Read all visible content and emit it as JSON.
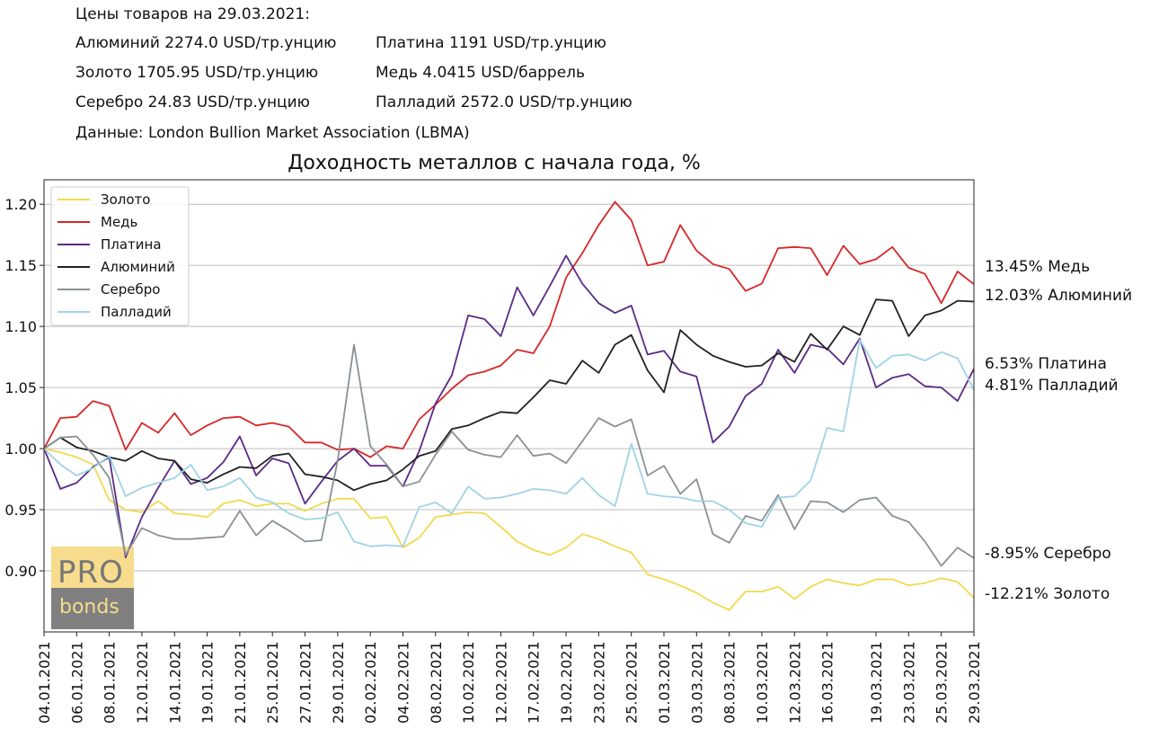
{
  "header": {
    "date_line": "Цены товаров на 29.03.2021:",
    "prices": [
      [
        "Алюминий 2274.0 USD/тр.унцию",
        "Платина 1191 USD/тр.унцию"
      ],
      [
        "Золото 1705.95 USD/тр.унцию",
        "Медь 4.0415 USD/баррель"
      ],
      [
        "Серебро 24.83 USD/тр.унцию",
        "Палладий 2572.0 USD/тр.унцию"
      ]
    ],
    "source": "Данные: London Bullion Market Association (LBMA)"
  },
  "watermark": {
    "top": "PRO",
    "bottom": "bonds"
  },
  "chart_data": {
    "type": "line",
    "title": "Доходность металлов с начала года, %",
    "xlabel": "",
    "ylabel": "",
    "ylim": [
      0.85,
      1.22
    ],
    "yticks": [
      0.9,
      0.95,
      1.0,
      1.05,
      1.1,
      1.15,
      1.2
    ],
    "grid": "horizontal",
    "legend_position": "top-left",
    "x": [
      "04.01.2021",
      "05.01.2021",
      "06.01.2021",
      "07.01.2021",
      "08.01.2021",
      "11.01.2021",
      "12.01.2021",
      "13.01.2021",
      "14.01.2021",
      "15.01.2021",
      "19.01.2021",
      "20.01.2021",
      "21.01.2021",
      "22.01.2021",
      "25.01.2021",
      "26.01.2021",
      "27.01.2021",
      "28.01.2021",
      "29.01.2021",
      "01.02.2021",
      "02.02.2021",
      "03.02.2021",
      "04.02.2021",
      "05.02.2021",
      "08.02.2021",
      "09.02.2021",
      "10.02.2021",
      "11.02.2021",
      "12.02.2021",
      "16.02.2021",
      "17.02.2021",
      "18.02.2021",
      "19.02.2021",
      "22.02.2021",
      "23.02.2021",
      "24.02.2021",
      "25.02.2021",
      "26.02.2021",
      "01.03.2021",
      "02.03.2021",
      "03.03.2021",
      "04.03.2021",
      "08.03.2021",
      "09.03.2021",
      "10.03.2021",
      "11.03.2021",
      "12.03.2021",
      "15.03.2021",
      "16.03.2021",
      "17.03.2021",
      "18.03.2021",
      "19.03.2021",
      "22.03.2021",
      "23.03.2021",
      "24.03.2021",
      "25.03.2021",
      "26.03.2021",
      "29.03.2021"
    ],
    "x_tick_labels": [
      "04.01.2021",
      "06.01.2021",
      "08.01.2021",
      "12.01.2021",
      "14.01.2021",
      "19.01.2021",
      "21.01.2021",
      "25.01.2021",
      "27.01.2021",
      "29.01.2021",
      "02.02.2021",
      "04.02.2021",
      "08.02.2021",
      "10.02.2021",
      "12.02.2021",
      "17.02.2021",
      "19.02.2021",
      "23.02.2021",
      "25.02.2021",
      "01.03.2021",
      "03.03.2021",
      "08.03.2021",
      "10.03.2021",
      "12.03.2021",
      "16.03.2021",
      "19.03.2021",
      "23.03.2021",
      "25.03.2021",
      "29.03.2021"
    ],
    "series": [
      {
        "name": "Золото",
        "color": "#f2d94e",
        "end_label": "-12.21% Золото",
        "values": [
          1.0,
          0.997,
          0.993,
          0.987,
          0.958,
          0.95,
          0.948,
          0.957,
          0.947,
          0.946,
          0.944,
          0.955,
          0.958,
          0.953,
          0.955,
          0.955,
          0.949,
          0.955,
          0.959,
          0.959,
          0.943,
          0.944,
          0.919,
          0.927,
          0.944,
          0.946,
          0.948,
          0.947,
          0.936,
          0.924,
          0.917,
          0.913,
          0.919,
          0.93,
          0.926,
          0.92,
          0.915,
          0.897,
          0.893,
          0.888,
          0.882,
          0.874,
          0.868,
          0.883,
          0.883,
          0.887,
          0.877,
          0.887,
          0.893,
          0.89,
          0.888,
          0.893,
          0.893,
          0.888,
          0.89,
          0.894,
          0.891,
          0.8779
        ]
      },
      {
        "name": "Медь",
        "color": "#d62728",
        "end_label": "13.45% Медь",
        "values": [
          1.0,
          1.025,
          1.026,
          1.039,
          1.035,
          0.999,
          1.021,
          1.013,
          1.029,
          1.011,
          1.019,
          1.025,
          1.026,
          1.019,
          1.021,
          1.018,
          1.005,
          1.005,
          0.999,
          1.0,
          0.993,
          1.002,
          1.0,
          1.024,
          1.036,
          1.049,
          1.06,
          1.063,
          1.068,
          1.081,
          1.078,
          1.1,
          1.14,
          1.16,
          1.183,
          1.202,
          1.187,
          1.15,
          1.153,
          1.183,
          1.162,
          1.151,
          1.147,
          1.129,
          1.135,
          1.164,
          1.165,
          1.164,
          1.142,
          1.166,
          1.151,
          1.155,
          1.165,
          1.148,
          1.143,
          1.119,
          1.145,
          1.1345
        ]
      },
      {
        "name": "Платина",
        "color": "#5b2a86",
        "end_label": "6.53% Платина",
        "values": [
          1.0,
          0.967,
          0.972,
          0.985,
          0.993,
          0.911,
          0.944,
          0.968,
          0.99,
          0.971,
          0.976,
          0.989,
          1.01,
          0.978,
          0.992,
          0.988,
          0.955,
          0.973,
          0.99,
          1.0,
          0.986,
          0.986,
          0.969,
          0.998,
          1.037,
          1.06,
          1.109,
          1.106,
          1.092,
          1.132,
          1.109,
          1.133,
          1.158,
          1.135,
          1.119,
          1.111,
          1.117,
          1.077,
          1.08,
          1.063,
          1.059,
          1.005,
          1.018,
          1.043,
          1.053,
          1.081,
          1.062,
          1.085,
          1.082,
          1.069,
          1.09,
          1.05,
          1.058,
          1.061,
          1.051,
          1.05,
          1.039,
          1.0653
        ]
      },
      {
        "name": "Алюминий",
        "color": "#222222",
        "end_label": "12.03% Алюминий",
        "values": [
          1.0,
          1.009,
          1.001,
          0.998,
          0.993,
          0.99,
          0.998,
          0.992,
          0.99,
          0.975,
          0.972,
          0.979,
          0.985,
          0.984,
          0.994,
          0.996,
          0.979,
          0.977,
          0.974,
          0.966,
          0.971,
          0.974,
          0.983,
          0.994,
          0.998,
          1.016,
          1.019,
          1.025,
          1.03,
          1.029,
          1.042,
          1.056,
          1.053,
          1.072,
          1.062,
          1.085,
          1.093,
          1.064,
          1.046,
          1.097,
          1.085,
          1.076,
          1.071,
          1.067,
          1.068,
          1.078,
          1.071,
          1.094,
          1.081,
          1.1,
          1.093,
          1.122,
          1.121,
          1.092,
          1.109,
          1.113,
          1.121,
          1.1203
        ]
      },
      {
        "name": "Серебро",
        "color": "#8a9196",
        "end_label": "-8.95% Серебро",
        "values": [
          1.0,
          1.009,
          1.01,
          0.995,
          0.976,
          0.913,
          0.935,
          0.929,
          0.926,
          0.926,
          0.927,
          0.928,
          0.949,
          0.929,
          0.941,
          0.933,
          0.924,
          0.925,
          0.99,
          1.085,
          1.002,
          0.987,
          0.969,
          0.973,
          0.995,
          1.014,
          0.999,
          0.995,
          0.993,
          1.011,
          0.994,
          0.996,
          0.988,
          1.006,
          1.025,
          1.018,
          1.024,
          0.978,
          0.986,
          0.963,
          0.975,
          0.93,
          0.923,
          0.945,
          0.941,
          0.962,
          0.934,
          0.957,
          0.956,
          0.948,
          0.958,
          0.96,
          0.945,
          0.94,
          0.924,
          0.904,
          0.919,
          0.9105
        ]
      },
      {
        "name": "Палладий",
        "color": "#9fd3e6",
        "end_label": "4.81% Палладий",
        "values": [
          1.0,
          0.987,
          0.978,
          0.984,
          0.994,
          0.961,
          0.968,
          0.972,
          0.976,
          0.987,
          0.966,
          0.969,
          0.976,
          0.96,
          0.956,
          0.947,
          0.942,
          0.943,
          0.948,
          0.924,
          0.92,
          0.921,
          0.92,
          0.952,
          0.956,
          0.947,
          0.969,
          0.959,
          0.96,
          0.963,
          0.967,
          0.966,
          0.963,
          0.976,
          0.962,
          0.953,
          1.004,
          0.963,
          0.961,
          0.96,
          0.957,
          0.957,
          0.95,
          0.939,
          0.936,
          0.96,
          0.961,
          0.974,
          1.017,
          1.014,
          1.089,
          1.066,
          1.076,
          1.077,
          1.072,
          1.079,
          1.074,
          1.0481
        ]
      }
    ]
  }
}
